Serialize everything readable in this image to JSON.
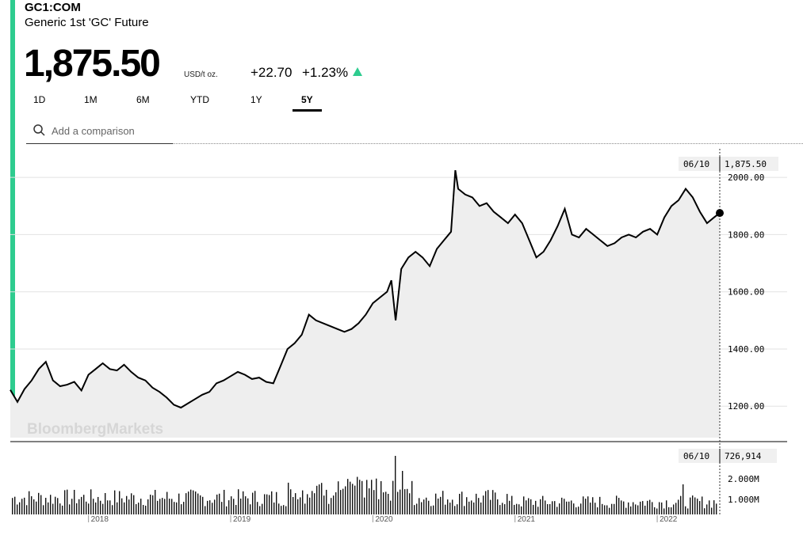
{
  "header": {
    "ticker": "GC1:COM",
    "name": "Generic 1st 'GC' Future",
    "price": "1,875.50",
    "unit": "USD/t oz.",
    "change": "+22.70",
    "change_pct": "+1.23%",
    "accent_color": "#2ecc8f"
  },
  "tabs": [
    {
      "label": "1D"
    },
    {
      "label": "1M"
    },
    {
      "label": "6M"
    },
    {
      "label": "YTD"
    },
    {
      "label": "1Y"
    },
    {
      "label": "5Y",
      "active": true
    }
  ],
  "search": {
    "placeholder": "Add a comparison"
  },
  "chart_data": {
    "type": "line",
    "watermark": "BloombergMarkets",
    "crosshair_date": "06/10",
    "crosshair_value": "1,875.50",
    "ylim": [
      1090,
      2100
    ],
    "y_ticks": [
      1200,
      1400,
      1600,
      1800,
      2000
    ],
    "y_tick_labels": [
      "1200.00",
      "1400.00",
      "1600.00",
      "1800.00",
      "2000.00"
    ],
    "x_range": [
      2017.45,
      2022.44
    ],
    "x_ticks": [
      2018,
      2019,
      2020,
      2021,
      2022
    ],
    "x_tick_labels": [
      "2018",
      "2019",
      "2020",
      "2021",
      "2022"
    ],
    "series": [
      {
        "x": [
          2017.45,
          2017.5,
          2017.55,
          2017.6,
          2017.65,
          2017.7,
          2017.75,
          2017.8,
          2017.85,
          2017.9,
          2017.95,
          2018.0,
          2018.05,
          2018.1,
          2018.15,
          2018.2,
          2018.25,
          2018.3,
          2018.35,
          2018.4,
          2018.45,
          2018.5,
          2018.55,
          2018.6,
          2018.65,
          2018.7,
          2018.75,
          2018.8,
          2018.85,
          2018.9,
          2018.95,
          2019.0,
          2019.05,
          2019.1,
          2019.15,
          2019.2,
          2019.25,
          2019.3,
          2019.35,
          2019.4,
          2019.45,
          2019.5,
          2019.55,
          2019.6,
          2019.65,
          2019.7,
          2019.75,
          2019.8,
          2019.85,
          2019.9,
          2019.95,
          2020.0,
          2020.05,
          2020.1,
          2020.13,
          2020.16,
          2020.2,
          2020.25,
          2020.3,
          2020.35,
          2020.4,
          2020.45,
          2020.5,
          2020.55,
          2020.58,
          2020.6,
          2020.65,
          2020.7,
          2020.75,
          2020.8,
          2020.85,
          2020.9,
          2020.95,
          2021.0,
          2021.05,
          2021.1,
          2021.15,
          2021.2,
          2021.25,
          2021.3,
          2021.35,
          2021.4,
          2021.45,
          2021.5,
          2021.55,
          2021.6,
          2021.65,
          2021.7,
          2021.75,
          2021.8,
          2021.85,
          2021.9,
          2021.95,
          2022.0,
          2022.05,
          2022.1,
          2022.15,
          2022.2,
          2022.25,
          2022.3,
          2022.35,
          2022.4,
          2022.44
        ],
        "values": [
          1257,
          1215,
          1260,
          1290,
          1330,
          1355,
          1290,
          1270,
          1275,
          1285,
          1255,
          1310,
          1330,
          1350,
          1330,
          1325,
          1345,
          1320,
          1300,
          1290,
          1265,
          1250,
          1230,
          1205,
          1195,
          1210,
          1225,
          1240,
          1250,
          1280,
          1290,
          1305,
          1320,
          1310,
          1295,
          1300,
          1285,
          1280,
          1340,
          1400,
          1420,
          1450,
          1520,
          1500,
          1490,
          1480,
          1470,
          1460,
          1470,
          1490,
          1520,
          1560,
          1580,
          1600,
          1640,
          1500,
          1680,
          1720,
          1740,
          1720,
          1690,
          1750,
          1780,
          1810,
          2025,
          1960,
          1940,
          1930,
          1900,
          1910,
          1880,
          1860,
          1840,
          1870,
          1840,
          1780,
          1720,
          1740,
          1780,
          1830,
          1890,
          1800,
          1790,
          1820,
          1800,
          1780,
          1760,
          1770,
          1790,
          1800,
          1790,
          1810,
          1820,
          1800,
          1860,
          1900,
          1920,
          1960,
          1930,
          1880,
          1840,
          1860,
          1875.5
        ]
      }
    ],
    "volume": {
      "label_date": "06/10",
      "label_value": "726,914",
      "y_tick_labels": [
        "2.000M",
        "1.000M"
      ]
    }
  }
}
